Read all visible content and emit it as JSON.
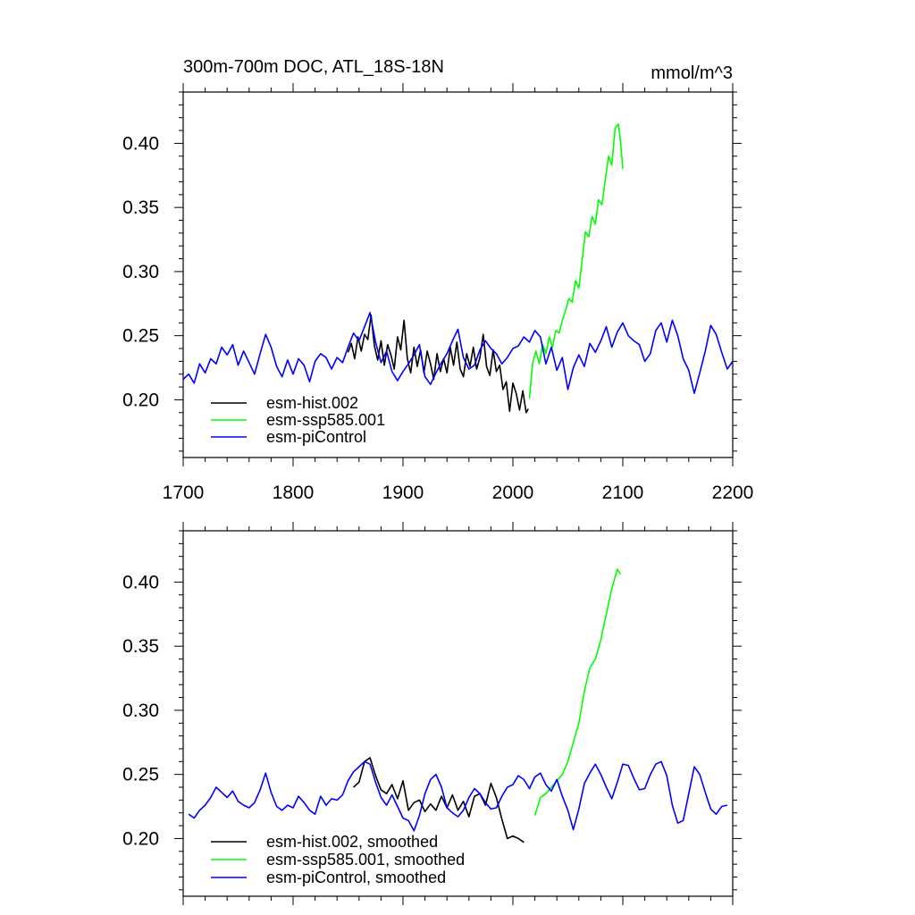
{
  "chart_data": [
    {
      "type": "line",
      "panel": "top",
      "title": "300m-700m DOC, ATL_18S-18N",
      "units": "mmol/m^3",
      "xlabel": "",
      "ylabel": "",
      "xlim": [
        1700,
        2200
      ],
      "ylim": [
        0.155,
        0.44
      ],
      "xticks": [
        1700,
        1800,
        1900,
        2000,
        2100,
        2200
      ],
      "xtick_labels": [
        "1700",
        "1800",
        "1900",
        "2000",
        "2100",
        "2200"
      ],
      "yticks": [
        0.2,
        0.25,
        0.3,
        0.35,
        0.4
      ],
      "ytick_labels": [
        "0.20",
        "0.25",
        "0.30",
        "0.35",
        "0.40"
      ],
      "legend_position": "bottom-left",
      "grid": false,
      "series": [
        {
          "name": "esm-hist.002",
          "color": "#000000",
          "x": [
            1850,
            1853,
            1856,
            1859,
            1862,
            1865,
            1868,
            1871,
            1874,
            1877,
            1880,
            1883,
            1886,
            1889,
            1892,
            1895,
            1898,
            1901,
            1904,
            1907,
            1910,
            1913,
            1916,
            1919,
            1922,
            1925,
            1928,
            1931,
            1934,
            1937,
            1940,
            1943,
            1946,
            1949,
            1952,
            1955,
            1958,
            1961,
            1964,
            1967,
            1970,
            1973,
            1976,
            1979,
            1982,
            1985,
            1988,
            1991,
            1994,
            1997,
            2000,
            2003,
            2006,
            2009,
            2012,
            2014
          ],
          "values": [
            0.237,
            0.244,
            0.232,
            0.249,
            0.238,
            0.251,
            0.247,
            0.266,
            0.242,
            0.231,
            0.246,
            0.227,
            0.243,
            0.235,
            0.224,
            0.249,
            0.239,
            0.262,
            0.232,
            0.221,
            0.241,
            0.226,
            0.239,
            0.221,
            0.238,
            0.228,
            0.216,
            0.236,
            0.222,
            0.232,
            0.221,
            0.241,
            0.227,
            0.245,
            0.224,
            0.218,
            0.236,
            0.226,
            0.241,
            0.224,
            0.233,
            0.251,
            0.226,
            0.219,
            0.239,
            0.222,
            0.227,
            0.208,
            0.214,
            0.191,
            0.213,
            0.205,
            0.192,
            0.207,
            0.19,
            0.193
          ]
        },
        {
          "name": "esm-ssp585.001",
          "color": "#00ff00",
          "x": [
            2015,
            2018,
            2021,
            2024,
            2027,
            2030,
            2033,
            2036,
            2039,
            2042,
            2045,
            2048,
            2051,
            2054,
            2057,
            2060,
            2063,
            2066,
            2069,
            2072,
            2075,
            2078,
            2081,
            2084,
            2087,
            2090,
            2093,
            2096,
            2098,
            2100
          ],
          "values": [
            0.201,
            0.229,
            0.238,
            0.228,
            0.243,
            0.236,
            0.249,
            0.241,
            0.254,
            0.252,
            0.262,
            0.27,
            0.279,
            0.276,
            0.293,
            0.287,
            0.309,
            0.331,
            0.327,
            0.343,
            0.337,
            0.356,
            0.352,
            0.371,
            0.39,
            0.383,
            0.412,
            0.415,
            0.401,
            0.38
          ]
        },
        {
          "name": "esm-piControl",
          "color": "#0000ff",
          "x": [
            1700,
            1705,
            1710,
            1715,
            1720,
            1725,
            1730,
            1735,
            1740,
            1745,
            1750,
            1755,
            1760,
            1765,
            1770,
            1775,
            1780,
            1785,
            1790,
            1795,
            1800,
            1805,
            1810,
            1815,
            1820,
            1825,
            1830,
            1835,
            1840,
            1845,
            1850,
            1855,
            1860,
            1865,
            1870,
            1875,
            1880,
            1885,
            1890,
            1895,
            1900,
            1905,
            1910,
            1915,
            1920,
            1925,
            1930,
            1935,
            1940,
            1945,
            1950,
            1955,
            1960,
            1965,
            1970,
            1975,
            1980,
            1985,
            1990,
            1995,
            2000,
            2005,
            2010,
            2015,
            2020,
            2025,
            2030,
            2035,
            2040,
            2045,
            2050,
            2055,
            2060,
            2065,
            2070,
            2075,
            2080,
            2085,
            2090,
            2095,
            2100,
            2105,
            2110,
            2115,
            2120,
            2125,
            2130,
            2135,
            2140,
            2145,
            2150,
            2155,
            2160,
            2165,
            2170,
            2175,
            2180,
            2185,
            2190,
            2195,
            2200
          ],
          "values": [
            0.216,
            0.22,
            0.213,
            0.228,
            0.221,
            0.232,
            0.228,
            0.241,
            0.235,
            0.243,
            0.227,
            0.238,
            0.229,
            0.22,
            0.236,
            0.251,
            0.241,
            0.226,
            0.218,
            0.231,
            0.22,
            0.232,
            0.227,
            0.214,
            0.23,
            0.236,
            0.233,
            0.224,
            0.233,
            0.229,
            0.241,
            0.252,
            0.246,
            0.257,
            0.268,
            0.245,
            0.229,
            0.238,
            0.222,
            0.215,
            0.222,
            0.228,
            0.235,
            0.243,
            0.218,
            0.212,
            0.221,
            0.229,
            0.236,
            0.246,
            0.255,
            0.233,
            0.224,
            0.227,
            0.239,
            0.246,
            0.24,
            0.236,
            0.228,
            0.233,
            0.24,
            0.242,
            0.249,
            0.245,
            0.254,
            0.249,
            0.228,
            0.241,
            0.223,
            0.233,
            0.208,
            0.225,
            0.235,
            0.226,
            0.244,
            0.237,
            0.246,
            0.257,
            0.241,
            0.253,
            0.26,
            0.25,
            0.246,
            0.243,
            0.23,
            0.236,
            0.254,
            0.26,
            0.245,
            0.262,
            0.25,
            0.232,
            0.223,
            0.205,
            0.221,
            0.238,
            0.258,
            0.251,
            0.237,
            0.224,
            0.23
          ]
        }
      ]
    },
    {
      "type": "line",
      "panel": "bottom",
      "title": "",
      "xlabel": "",
      "ylabel": "",
      "xlim": [
        1700,
        2200
      ],
      "ylim": [
        0.155,
        0.44
      ],
      "xticks": [
        1700,
        1800,
        1900,
        2000,
        2100,
        2200
      ],
      "yticks": [
        0.2,
        0.25,
        0.3,
        0.35,
        0.4
      ],
      "ytick_labels": [
        "0.20",
        "0.25",
        "0.30",
        "0.35",
        "0.40"
      ],
      "legend_position": "bottom-left",
      "grid": false,
      "series": [
        {
          "name": "esm-hist.002, smoothed",
          "color": "#000000",
          "x": [
            1855,
            1860,
            1865,
            1870,
            1875,
            1880,
            1885,
            1890,
            1895,
            1900,
            1905,
            1910,
            1915,
            1920,
            1925,
            1930,
            1935,
            1940,
            1945,
            1950,
            1955,
            1960,
            1965,
            1970,
            1975,
            1980,
            1985,
            1990,
            1995,
            2000,
            2005,
            2010
          ],
          "values": [
            0.24,
            0.244,
            0.26,
            0.263,
            0.249,
            0.238,
            0.235,
            0.242,
            0.231,
            0.245,
            0.222,
            0.228,
            0.23,
            0.221,
            0.227,
            0.222,
            0.233,
            0.224,
            0.234,
            0.222,
            0.229,
            0.217,
            0.233,
            0.235,
            0.226,
            0.243,
            0.232,
            0.215,
            0.2,
            0.202,
            0.2,
            0.197
          ]
        },
        {
          "name": "esm-ssp585.001, smoothed",
          "color": "#00ff00",
          "x": [
            2020,
            2025,
            2030,
            2035,
            2040,
            2045,
            2050,
            2055,
            2060,
            2065,
            2070,
            2075,
            2080,
            2085,
            2090,
            2095,
            2098
          ],
          "values": [
            0.218,
            0.232,
            0.235,
            0.24,
            0.245,
            0.25,
            0.26,
            0.275,
            0.29,
            0.315,
            0.333,
            0.34,
            0.355,
            0.375,
            0.395,
            0.41,
            0.406
          ]
        },
        {
          "name": "esm-piControl, smoothed",
          "color": "#0000ff",
          "x": [
            1705,
            1710,
            1715,
            1720,
            1725,
            1730,
            1735,
            1740,
            1745,
            1750,
            1755,
            1760,
            1765,
            1770,
            1775,
            1780,
            1785,
            1790,
            1795,
            1800,
            1805,
            1810,
            1815,
            1820,
            1825,
            1830,
            1835,
            1840,
            1845,
            1850,
            1855,
            1860,
            1865,
            1870,
            1875,
            1880,
            1885,
            1890,
            1895,
            1900,
            1905,
            1910,
            1915,
            1920,
            1925,
            1930,
            1935,
            1940,
            1945,
            1950,
            1955,
            1960,
            1965,
            1970,
            1975,
            1980,
            1985,
            1990,
            1995,
            2000,
            2005,
            2010,
            2015,
            2020,
            2025,
            2030,
            2035,
            2040,
            2045,
            2050,
            2055,
            2060,
            2065,
            2070,
            2075,
            2080,
            2085,
            2090,
            2095,
            2100,
            2105,
            2110,
            2115,
            2120,
            2125,
            2130,
            2135,
            2140,
            2145,
            2150,
            2155,
            2160,
            2165,
            2170,
            2175,
            2180,
            2185,
            2190,
            2195
          ],
          "values": [
            0.219,
            0.216,
            0.222,
            0.226,
            0.232,
            0.24,
            0.236,
            0.232,
            0.237,
            0.229,
            0.226,
            0.224,
            0.228,
            0.238,
            0.251,
            0.236,
            0.225,
            0.222,
            0.226,
            0.224,
            0.233,
            0.228,
            0.222,
            0.219,
            0.233,
            0.226,
            0.231,
            0.23,
            0.234,
            0.245,
            0.252,
            0.256,
            0.26,
            0.258,
            0.244,
            0.232,
            0.226,
            0.234,
            0.225,
            0.216,
            0.214,
            0.206,
            0.218,
            0.235,
            0.246,
            0.25,
            0.24,
            0.224,
            0.22,
            0.217,
            0.222,
            0.232,
            0.239,
            0.235,
            0.228,
            0.223,
            0.224,
            0.233,
            0.24,
            0.242,
            0.249,
            0.246,
            0.239,
            0.248,
            0.251,
            0.242,
            0.237,
            0.246,
            0.233,
            0.222,
            0.207,
            0.223,
            0.243,
            0.251,
            0.258,
            0.25,
            0.24,
            0.231,
            0.244,
            0.258,
            0.257,
            0.247,
            0.238,
            0.239,
            0.25,
            0.258,
            0.26,
            0.249,
            0.226,
            0.212,
            0.214,
            0.235,
            0.256,
            0.25,
            0.236,
            0.223,
            0.219,
            0.225,
            0.226
          ]
        }
      ]
    }
  ]
}
